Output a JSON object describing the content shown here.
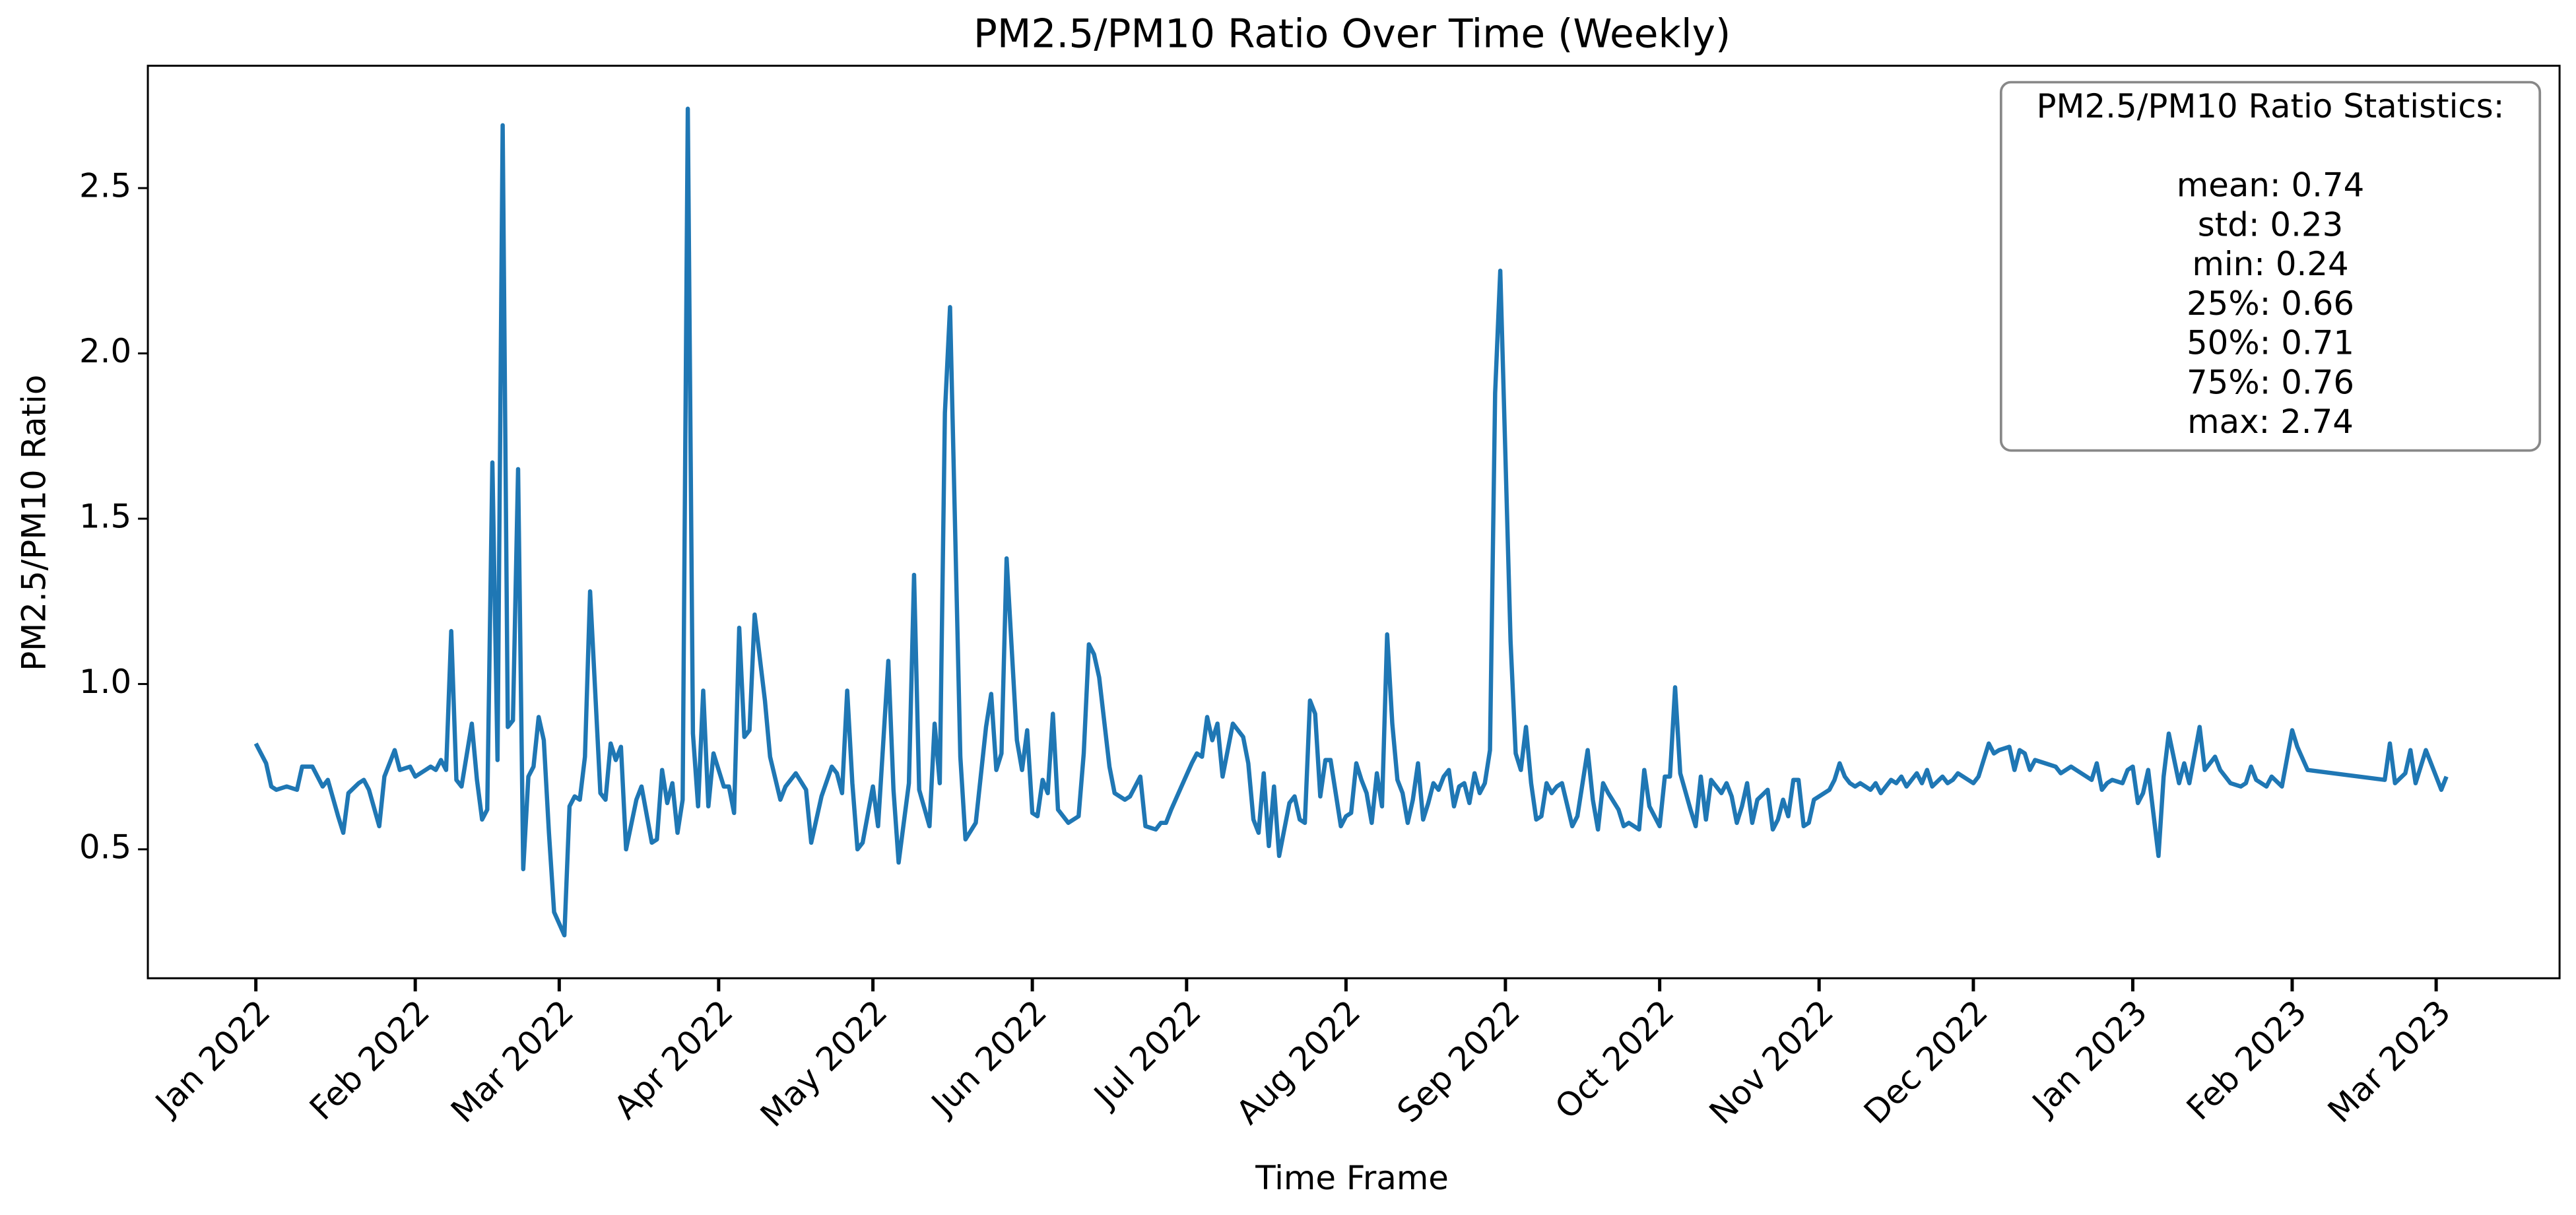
{
  "chart_data": {
    "type": "line",
    "title": "PM2.5/PM10 Ratio Over Time (Weekly)",
    "x_label": "Time Frame",
    "y_label": "PM2.5/PM10 Ratio",
    "color": "#1f77b4",
    "stats_box": {
      "title": "PM2.5/PM10 Ratio Statistics:",
      "lines": [
        "mean: 0.74",
        "std: 0.23",
        "min: 0.24",
        "25%: 0.66",
        "50%: 0.71",
        "75%: 0.76",
        "max: 2.74"
      ]
    },
    "xlim": [
      "2021-12-11",
      "2023-03-25"
    ],
    "xticks": [
      {
        "value": "2022-01-01",
        "label": "Jan 2022"
      },
      {
        "value": "2022-02-01",
        "label": "Feb 2022"
      },
      {
        "value": "2022-03-01",
        "label": "Mar 2022"
      },
      {
        "value": "2022-04-01",
        "label": "Apr 2022"
      },
      {
        "value": "2022-05-01",
        "label": "May 2022"
      },
      {
        "value": "2022-06-01",
        "label": "Jun 2022"
      },
      {
        "value": "2022-07-01",
        "label": "Jul 2022"
      },
      {
        "value": "2022-08-01",
        "label": "Aug 2022"
      },
      {
        "value": "2022-09-01",
        "label": "Sep 2022"
      },
      {
        "value": "2022-10-01",
        "label": "Oct 2022"
      },
      {
        "value": "2022-11-01",
        "label": "Nov 2022"
      },
      {
        "value": "2022-12-01",
        "label": "Dec 2022"
      },
      {
        "value": "2023-01-01",
        "label": "Jan 2023"
      },
      {
        "value": "2023-02-01",
        "label": "Feb 2023"
      },
      {
        "value": "2023-03-01",
        "label": "Mar 2023"
      }
    ],
    "ylim": [
      0.11,
      2.87
    ],
    "yticks": [
      0.5,
      {
        "value": 1,
        "label": "1.0"
      },
      1.5,
      {
        "value": 2,
        "label": "2.0"
      },
      2.5
    ],
    "x": [
      "2022-01-01",
      "2022-01-03",
      "2022-01-04",
      "2022-01-05",
      "2022-01-07",
      "2022-01-09",
      "2022-01-10",
      "2022-01-12",
      "2022-01-14",
      "2022-01-15",
      "2022-01-17",
      "2022-01-18",
      "2022-01-19",
      "2022-01-21",
      "2022-01-22",
      "2022-01-23",
      "2022-01-25",
      "2022-01-26",
      "2022-01-28",
      "2022-01-29",
      "2022-01-31",
      "2022-02-01",
      "2022-02-03",
      "2022-02-04",
      "2022-02-05",
      "2022-02-06",
      "2022-02-07",
      "2022-02-08",
      "2022-02-09",
      "2022-02-10",
      "2022-02-12",
      "2022-02-13",
      "2022-02-14",
      "2022-02-15",
      "2022-02-16",
      "2022-02-17",
      "2022-02-18",
      "2022-02-19",
      "2022-02-20",
      "2022-02-21",
      "2022-02-22",
      "2022-02-23",
      "2022-02-24",
      "2022-02-25",
      "2022-02-26",
      "2022-02-27",
      "2022-02-28",
      "2022-03-02",
      "2022-03-03",
      "2022-03-04",
      "2022-03-05",
      "2022-03-06",
      "2022-03-07",
      "2022-03-09",
      "2022-03-10",
      "2022-03-11",
      "2022-03-12",
      "2022-03-13",
      "2022-03-14",
      "2022-03-16",
      "2022-03-17",
      "2022-03-19",
      "2022-03-20",
      "2022-03-21",
      "2022-03-22",
      "2022-03-23",
      "2022-03-24",
      "2022-03-25",
      "2022-03-26",
      "2022-03-27",
      "2022-03-28",
      "2022-03-29",
      "2022-03-30",
      "2022-03-31",
      "2022-04-02",
      "2022-04-03",
      "2022-04-04",
      "2022-04-05",
      "2022-04-06",
      "2022-04-07",
      "2022-04-08",
      "2022-04-10",
      "2022-04-11",
      "2022-04-13",
      "2022-04-14",
      "2022-04-16",
      "2022-04-18",
      "2022-04-19",
      "2022-04-21",
      "2022-04-23",
      "2022-04-24",
      "2022-04-25",
      "2022-04-26",
      "2022-04-27",
      "2022-04-28",
      "2022-04-29",
      "2022-05-01",
      "2022-05-02",
      "2022-05-03",
      "2022-05-04",
      "2022-05-05",
      "2022-05-06",
      "2022-05-08",
      "2022-05-09",
      "2022-05-10",
      "2022-05-12",
      "2022-05-13",
      "2022-05-14",
      "2022-05-15",
      "2022-05-16",
      "2022-05-18",
      "2022-05-19",
      "2022-05-21",
      "2022-05-23",
      "2022-05-24",
      "2022-05-25",
      "2022-05-26",
      "2022-05-27",
      "2022-05-29",
      "2022-05-30",
      "2022-05-31",
      "2022-06-01",
      "2022-06-02",
      "2022-06-03",
      "2022-06-04",
      "2022-06-05",
      "2022-06-06",
      "2022-06-08",
      "2022-06-10",
      "2022-06-11",
      "2022-06-12",
      "2022-06-13",
      "2022-06-14",
      "2022-06-16",
      "2022-06-17",
      "2022-06-19",
      "2022-06-20",
      "2022-06-22",
      "2022-06-23",
      "2022-06-25",
      "2022-06-26",
      "2022-06-27",
      "2022-06-28",
      "2022-06-30",
      "2022-07-02",
      "2022-07-03",
      "2022-07-04",
      "2022-07-05",
      "2022-07-06",
      "2022-07-07",
      "2022-07-08",
      "2022-07-09",
      "2022-07-10",
      "2022-07-12",
      "2022-07-13",
      "2022-07-14",
      "2022-07-15",
      "2022-07-16",
      "2022-07-17",
      "2022-07-18",
      "2022-07-19",
      "2022-07-21",
      "2022-07-22",
      "2022-07-23",
      "2022-07-24",
      "2022-07-25",
      "2022-07-26",
      "2022-07-27",
      "2022-07-28",
      "2022-07-29",
      "2022-07-30",
      "2022-07-31",
      "2022-08-01",
      "2022-08-02",
      "2022-08-03",
      "2022-08-04",
      "2022-08-05",
      "2022-08-06",
      "2022-08-07",
      "2022-08-08",
      "2022-08-09",
      "2022-08-10",
      "2022-08-11",
      "2022-08-12",
      "2022-08-13",
      "2022-08-14",
      "2022-08-15",
      "2022-08-16",
      "2022-08-17",
      "2022-08-18",
      "2022-08-19",
      "2022-08-20",
      "2022-08-21",
      "2022-08-22",
      "2022-08-23",
      "2022-08-24",
      "2022-08-25",
      "2022-08-26",
      "2022-08-27",
      "2022-08-28",
      "2022-08-29",
      "2022-08-30",
      "2022-08-31",
      "2022-09-02",
      "2022-09-03",
      "2022-09-04",
      "2022-09-05",
      "2022-09-06",
      "2022-09-07",
      "2022-09-08",
      "2022-09-09",
      "2022-09-10",
      "2022-09-11",
      "2022-09-12",
      "2022-09-14",
      "2022-09-15",
      "2022-09-17",
      "2022-09-18",
      "2022-09-19",
      "2022-09-20",
      "2022-09-21",
      "2022-09-23",
      "2022-09-24",
      "2022-09-25",
      "2022-09-27",
      "2022-09-28",
      "2022-09-29",
      "2022-10-01",
      "2022-10-02",
      "2022-10-03",
      "2022-10-04",
      "2022-10-05",
      "2022-10-07",
      "2022-10-08",
      "2022-10-09",
      "2022-10-10",
      "2022-10-11",
      "2022-10-12",
      "2022-10-13",
      "2022-10-14",
      "2022-10-15",
      "2022-10-16",
      "2022-10-17",
      "2022-10-18",
      "2022-10-19",
      "2022-10-20",
      "2022-10-22",
      "2022-10-23",
      "2022-10-24",
      "2022-10-25",
      "2022-10-26",
      "2022-10-27",
      "2022-10-28",
      "2022-10-29",
      "2022-10-30",
      "2022-10-31",
      "2022-11-01",
      "2022-11-03",
      "2022-11-04",
      "2022-11-05",
      "2022-11-06",
      "2022-11-07",
      "2022-11-08",
      "2022-11-09",
      "2022-11-11",
      "2022-11-12",
      "2022-11-13",
      "2022-11-15",
      "2022-11-16",
      "2022-11-17",
      "2022-11-18",
      "2022-11-20",
      "2022-11-21",
      "2022-11-22",
      "2022-11-23",
      "2022-11-25",
      "2022-11-26",
      "2022-11-27",
      "2022-11-28",
      "2022-11-30",
      "2022-12-01",
      "2022-12-02",
      "2022-12-04",
      "2022-12-05",
      "2022-12-06",
      "2022-12-08",
      "2022-12-09",
      "2022-12-10",
      "2022-12-11",
      "2022-12-12",
      "2022-12-13",
      "2022-12-15",
      "2022-12-17",
      "2022-12-18",
      "2022-12-20",
      "2022-12-21",
      "2022-12-23",
      "2022-12-24",
      "2022-12-25",
      "2022-12-26",
      "2022-12-27",
      "2022-12-28",
      "2022-12-30",
      "2022-12-31",
      "2023-01-01",
      "2023-01-02",
      "2023-01-03",
      "2023-01-04",
      "2023-01-05",
      "2023-01-06",
      "2023-01-07",
      "2023-01-08",
      "2023-01-10",
      "2023-01-11",
      "2023-01-12",
      "2023-01-14",
      "2023-01-15",
      "2023-01-17",
      "2023-01-18",
      "2023-01-19",
      "2023-01-20",
      "2023-01-22",
      "2023-01-23",
      "2023-01-24",
      "2023-01-25",
      "2023-01-27",
      "2023-01-28",
      "2023-01-30",
      "2023-02-01",
      "2023-02-02",
      "2023-02-04",
      "2023-02-19",
      "2023-02-20",
      "2023-02-21",
      "2023-02-23",
      "2023-02-24",
      "2023-02-25",
      "2023-02-27",
      "2023-03-02",
      "2023-03-03"
    ],
    "values": [
      0.82,
      0.76,
      0.69,
      0.68,
      0.69,
      0.68,
      0.75,
      0.75,
      0.69,
      0.71,
      0.6,
      0.55,
      0.67,
      0.7,
      0.71,
      0.68,
      0.57,
      0.72,
      0.8,
      0.74,
      0.75,
      0.72,
      0.74,
      0.75,
      0.74,
      0.77,
      0.74,
      1.16,
      0.71,
      0.69,
      0.88,
      0.71,
      0.59,
      0.62,
      1.67,
      0.77,
      2.69,
      0.87,
      0.89,
      1.65,
      0.44,
      0.72,
      0.75,
      0.9,
      0.83,
      0.55,
      0.31,
      0.24,
      0.63,
      0.66,
      0.65,
      0.78,
      1.28,
      0.67,
      0.65,
      0.82,
      0.77,
      0.81,
      0.5,
      0.65,
      0.69,
      0.52,
      0.53,
      0.74,
      0.64,
      0.7,
      0.55,
      0.65,
      2.74,
      0.85,
      0.63,
      0.98,
      0.63,
      0.79,
      0.69,
      0.69,
      0.61,
      1.17,
      0.84,
      0.86,
      1.21,
      0.95,
      0.78,
      0.65,
      0.69,
      0.73,
      0.68,
      0.52,
      0.66,
      0.75,
      0.73,
      0.67,
      0.98,
      0.7,
      0.5,
      0.52,
      0.69,
      0.57,
      0.82,
      1.07,
      0.68,
      0.46,
      0.7,
      1.33,
      0.68,
      0.57,
      0.88,
      0.7,
      1.82,
      2.14,
      0.78,
      0.53,
      0.58,
      0.87,
      0.97,
      0.74,
      0.79,
      1.38,
      0.83,
      0.74,
      0.86,
      0.61,
      0.6,
      0.71,
      0.67,
      0.91,
      0.62,
      0.58,
      0.6,
      0.79,
      1.12,
      1.09,
      1.02,
      0.75,
      0.67,
      0.65,
      0.66,
      0.72,
      0.57,
      0.56,
      0.58,
      0.58,
      0.62,
      0.69,
      0.76,
      0.79,
      0.78,
      0.9,
      0.83,
      0.88,
      0.72,
      0.8,
      0.88,
      0.84,
      0.76,
      0.59,
      0.55,
      0.73,
      0.51,
      0.69,
      0.48,
      0.64,
      0.66,
      0.59,
      0.58,
      0.95,
      0.91,
      0.66,
      0.77,
      0.77,
      0.67,
      0.57,
      0.6,
      0.61,
      0.76,
      0.71,
      0.67,
      0.58,
      0.73,
      0.63,
      1.15,
      0.88,
      0.71,
      0.67,
      0.58,
      0.65,
      0.76,
      0.59,
      0.64,
      0.7,
      0.68,
      0.72,
      0.74,
      0.63,
      0.69,
      0.7,
      0.64,
      0.73,
      0.67,
      0.7,
      0.8,
      1.88,
      2.25,
      1.13,
      0.79,
      0.74,
      0.87,
      0.7,
      0.59,
      0.6,
      0.7,
      0.67,
      0.69,
      0.7,
      0.57,
      0.6,
      0.8,
      0.65,
      0.56,
      0.7,
      0.67,
      0.62,
      0.57,
      0.58,
      0.56,
      0.74,
      0.63,
      0.57,
      0.72,
      0.72,
      0.99,
      0.73,
      0.62,
      0.57,
      0.72,
      0.59,
      0.71,
      0.69,
      0.67,
      0.7,
      0.66,
      0.58,
      0.63,
      0.7,
      0.58,
      0.65,
      0.68,
      0.56,
      0.59,
      0.65,
      0.6,
      0.71,
      0.71,
      0.57,
      0.58,
      0.65,
      0.66,
      0.68,
      0.71,
      0.76,
      0.72,
      0.7,
      0.69,
      0.7,
      0.68,
      0.7,
      0.67,
      0.71,
      0.7,
      0.72,
      0.69,
      0.73,
      0.7,
      0.74,
      0.69,
      0.72,
      0.7,
      0.71,
      0.73,
      0.71,
      0.7,
      0.72,
      0.82,
      0.79,
      0.8,
      0.81,
      0.74,
      0.8,
      0.79,
      0.74,
      0.77,
      0.76,
      0.75,
      0.73,
      0.75,
      0.74,
      0.72,
      0.71,
      0.76,
      0.68,
      0.7,
      0.71,
      0.7,
      0.74,
      0.75,
      0.64,
      0.67,
      0.74,
      0.61,
      0.48,
      0.72,
      0.85,
      0.7,
      0.76,
      0.7,
      0.87,
      0.74,
      0.78,
      0.74,
      0.72,
      0.7,
      0.69,
      0.7,
      0.75,
      0.71,
      0.69,
      0.72,
      0.69,
      0.86,
      0.81,
      0.74,
      0.71,
      0.82,
      0.7,
      0.73,
      0.8,
      0.7,
      0.8,
      0.68,
      0.72
    ]
  }
}
